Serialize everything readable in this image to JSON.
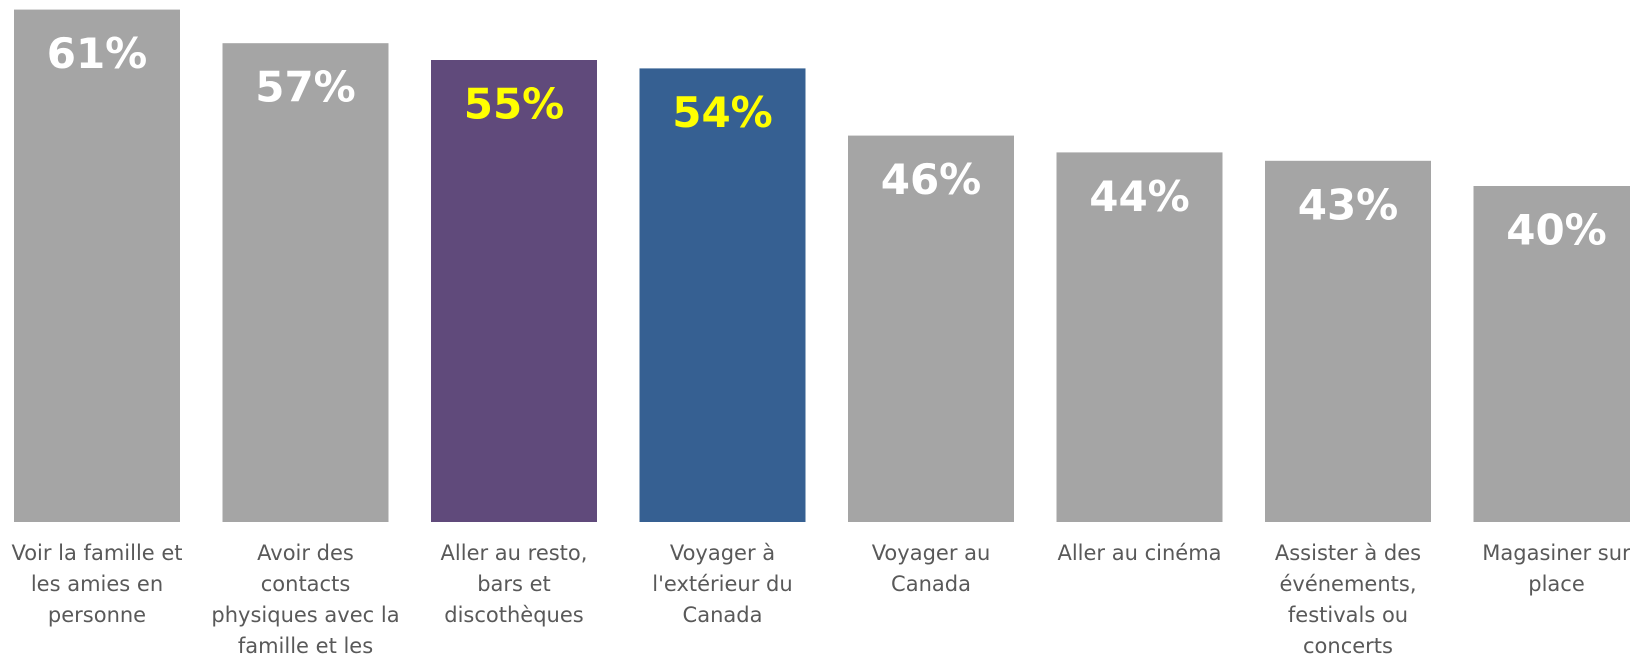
{
  "chart_data": {
    "type": "bar",
    "categories": [
      "Voir la famille et les amies en personne",
      "Avoir des contacts physiques avec la famille et les amis",
      "Aller au resto, bars et discothèques",
      "Voyager à l'extérieur du Canada",
      "Voyager au Canada",
      "Aller au cinéma",
      "Assister à des événements, festivals ou concerts",
      "Magasiner sur place"
    ],
    "values": [
      61,
      57,
      55,
      54,
      46,
      44,
      43,
      40
    ],
    "value_labels": [
      "61%",
      "57%",
      "55%",
      "54%",
      "46%",
      "44%",
      "43%",
      "40%"
    ],
    "colors": [
      "#a5a5a5",
      "#a5a5a5",
      "#604a7b",
      "#366092",
      "#a5a5a5",
      "#a5a5a5",
      "#a5a5a5",
      "#a5a5a5"
    ],
    "label_colors": [
      "#ffffff",
      "#ffffff",
      "#ffff00",
      "#ffff00",
      "#ffffff",
      "#ffffff",
      "#ffffff",
      "#ffffff"
    ]
  }
}
